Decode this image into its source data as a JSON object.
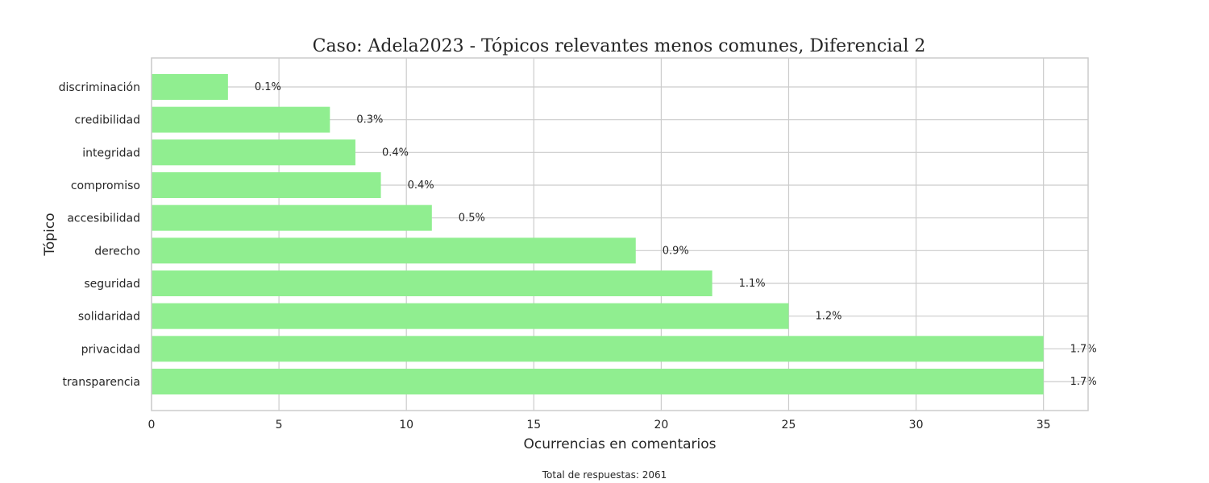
{
  "chart_data": {
    "type": "bar",
    "orientation": "horizontal",
    "title": "Caso: Adela2023 - Tópicos relevantes menos comunes, Diferencial 2",
    "xlabel": "Ocurrencias en comentarios",
    "ylabel": "Tópico",
    "categories": [
      "discriminación",
      "credibilidad",
      "integridad",
      "compromiso",
      "accesibilidad",
      "derecho",
      "seguridad",
      "solidaridad",
      "privacidad",
      "transparencia"
    ],
    "values": [
      3,
      7,
      8,
      9,
      11,
      19,
      22,
      25,
      35,
      35
    ],
    "data_labels": [
      "0.1%",
      "0.3%",
      "0.4%",
      "0.4%",
      "0.5%",
      "0.9%",
      "1.1%",
      "1.2%",
      "1.7%",
      "1.7%"
    ],
    "xlim": [
      0,
      36.75
    ],
    "xticks": [
      0,
      5,
      10,
      15,
      20,
      25,
      30,
      35
    ],
    "grid": true,
    "bar_color": "#90ee90",
    "grid_color": "#cccccc",
    "footer": "Total de respuestas: 2061"
  }
}
